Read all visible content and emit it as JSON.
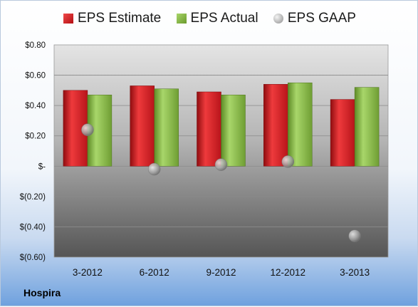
{
  "legend": {
    "estimate": "EPS Estimate",
    "actual": "EPS Actual",
    "gaap": "EPS GAAP"
  },
  "company": "Hospira",
  "colors": {
    "estimate": "#d01c22",
    "actual": "#8cc04a",
    "gaap": "#9a9a9a"
  },
  "chart_data": {
    "type": "bar",
    "categories": [
      "3-2012",
      "6-2012",
      "9-2012",
      "12-2012",
      "3-2013"
    ],
    "series": [
      {
        "name": "EPS Estimate",
        "values": [
          0.5,
          0.53,
          0.49,
          0.54,
          0.44
        ]
      },
      {
        "name": "EPS Actual",
        "values": [
          0.47,
          0.51,
          0.47,
          0.55,
          0.52
        ]
      },
      {
        "name": "EPS GAAP",
        "values": [
          0.24,
          -0.02,
          0.01,
          0.03,
          -0.46
        ]
      }
    ],
    "ylim": [
      -0.6,
      0.8
    ],
    "yticks": [
      0.8,
      0.6,
      0.4,
      0.2,
      0,
      -0.2,
      -0.4,
      -0.6
    ],
    "ytick_labels": [
      "$0.80",
      "$0.60",
      "$0.40",
      "$0.20",
      "$-",
      "$(0.20)",
      "$(0.40)",
      "$(0.60)"
    ],
    "grid": true,
    "legend_position": "top"
  }
}
